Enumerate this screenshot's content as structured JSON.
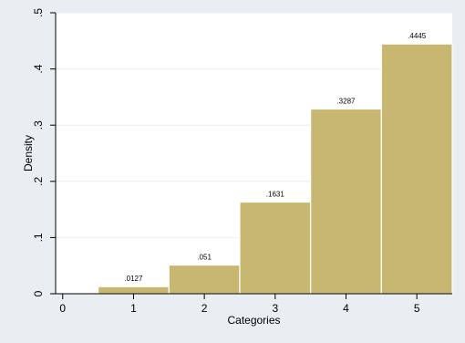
{
  "chart_data": {
    "type": "bar",
    "categories": [
      "1",
      "2",
      "3",
      "4",
      "5"
    ],
    "values": [
      0.0127,
      0.051,
      0.1631,
      0.3287,
      0.4445
    ],
    "data_labels": [
      ".0127",
      ".051",
      ".1631",
      ".3287",
      ".4445"
    ],
    "xlabel": "Categories",
    "ylabel": "Density",
    "xticks": [
      "0",
      "1",
      "2",
      "3",
      "4",
      "5"
    ],
    "yticks": [
      "0",
      ".1",
      ".2",
      ".3",
      ".4",
      ".5"
    ],
    "xlim": [
      -0.1,
      5.5
    ],
    "ylim": [
      0,
      0.5
    ],
    "grid": true,
    "colors": {
      "background": "#e8eef1",
      "plot_area": "#ffffff",
      "bar_fill": "#c8b771",
      "bar_stroke": "#ffffff",
      "grid": "#e8eef1",
      "axis": "#000000"
    }
  }
}
